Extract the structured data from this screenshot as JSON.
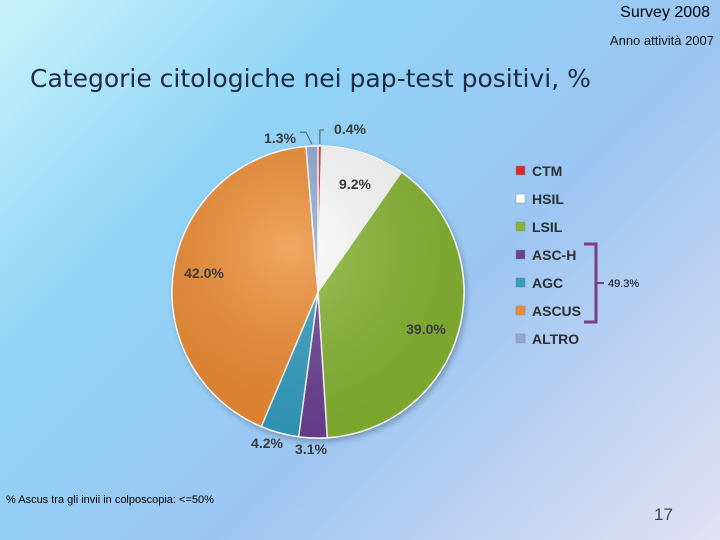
{
  "header": {
    "survey": "Survey 2008",
    "subtitle": "Anno attività 2007"
  },
  "footer": {
    "note": "% Ascus tra gli invii in colposcopia: <=50%",
    "page_number": "17"
  },
  "chart_data": {
    "type": "pie",
    "title": "Categorie citologiche nei pap-test positivi, %",
    "slices": [
      {
        "label": "CTM",
        "value": 0.4,
        "value_label": "0.4%",
        "color": "#d42a2f"
      },
      {
        "label": "HSIL",
        "value": 9.2,
        "value_label": "9.2%",
        "color": "#ffffff"
      },
      {
        "label": "LSIL",
        "value": 39.0,
        "value_label": "39.0%",
        "color": "#86b52f"
      },
      {
        "label": "ASC-H",
        "value": 3.1,
        "value_label": "3.1%",
        "color": "#6b3f94"
      },
      {
        "label": "AGC",
        "value": 4.2,
        "value_label": "4.2%",
        "color": "#2f9ec2"
      },
      {
        "label": "ASCUS",
        "value": 42.0,
        "value_label": "42.0%",
        "color": "#ef8a2e"
      },
      {
        "label": "ALTRO",
        "value": 1.3,
        "value_label": "1.3%",
        "color": "#8fa8cf"
      }
    ],
    "legend_position": "right",
    "bracket": {
      "label": "49.3%",
      "covers": [
        "ASC-H",
        "AGC",
        "ASCUS"
      ],
      "color": "#7d3c8a"
    }
  }
}
